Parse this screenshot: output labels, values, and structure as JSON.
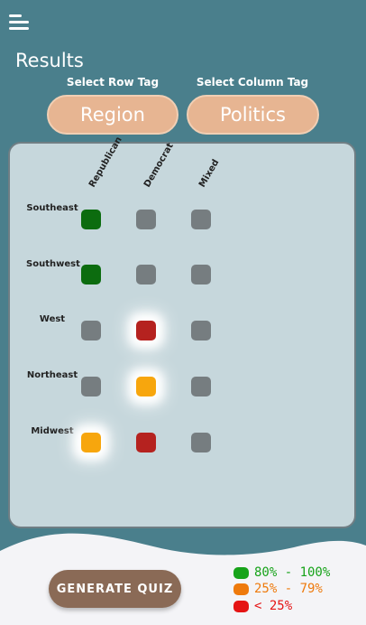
{
  "header": {
    "title": "Results"
  },
  "selectors": {
    "row_label": "Select Row Tag",
    "row_value": "Region",
    "column_label": "Select Column Tag",
    "column_value": "Politics"
  },
  "grid": {
    "columns": [
      "Republican",
      "Democrat",
      "Mixed"
    ],
    "rows": [
      "Southeast",
      "Southwest",
      "West",
      "Northeast",
      "Midwest"
    ],
    "cells": [
      [
        "green",
        "grey",
        "grey"
      ],
      [
        "green",
        "grey",
        "grey"
      ],
      [
        "grey",
        "red",
        "grey"
      ],
      [
        "grey",
        "orange",
        "grey"
      ],
      [
        "orange",
        "red",
        "grey"
      ]
    ],
    "highlighted": [
      [
        2,
        1
      ],
      [
        3,
        1
      ],
      [
        4,
        0
      ]
    ]
  },
  "actions": {
    "generate_label": "GENERATE QUIZ"
  },
  "legend": [
    {
      "label": "80% - 100%",
      "color": "#17a31a"
    },
    {
      "label": "25% - 79%",
      "color": "#ee7a0c"
    },
    {
      "label": "< 25%",
      "color": "#e51414"
    }
  ]
}
